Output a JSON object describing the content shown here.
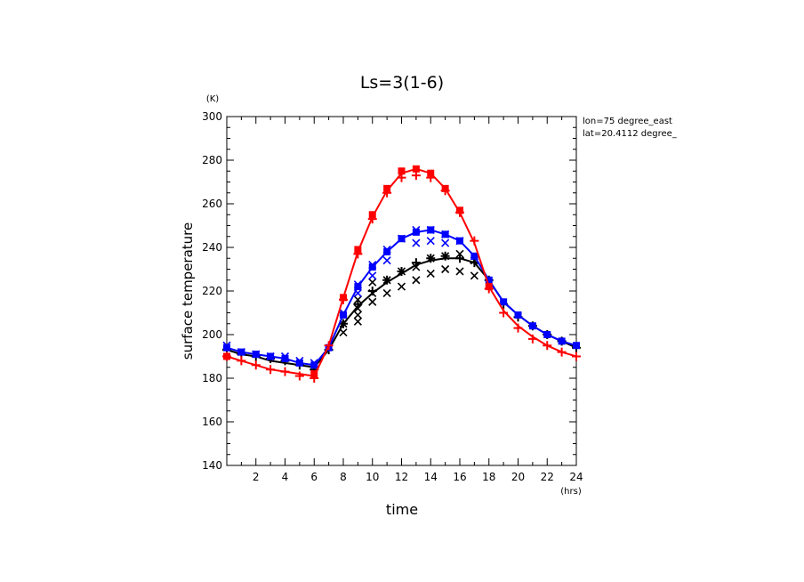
{
  "chart_data": {
    "type": "line",
    "title": "Ls=3(1-6)",
    "xlabel": "time",
    "ylabel": "surface temperature",
    "x_unit": "(hrs)",
    "y_unit": "(K)",
    "annotations": [
      "lon=75 degree_east",
      "lat=20.4112 degree_"
    ],
    "xlim": [
      0,
      24
    ],
    "ylim": [
      140,
      300
    ],
    "x_ticks": [
      2,
      4,
      6,
      8,
      10,
      12,
      14,
      16,
      18,
      20,
      22,
      24
    ],
    "x_tick_labels": [
      "2",
      "4",
      "6",
      "8",
      "10",
      "12",
      "14",
      "16",
      "18",
      "20",
      "22",
      "24"
    ],
    "y_ticks": [
      140,
      160,
      180,
      200,
      220,
      240,
      260,
      280,
      300
    ],
    "y_tick_labels": [
      "140",
      "160",
      "180",
      "200",
      "220",
      "240",
      "260",
      "280",
      "300"
    ],
    "grid": false,
    "series": [
      {
        "color": "#000000",
        "x": [
          0,
          1,
          2,
          3,
          4,
          5,
          6,
          7,
          8,
          9,
          10,
          11,
          12,
          13,
          14,
          15,
          16,
          17,
          18,
          19,
          20,
          21,
          22,
          23,
          24
        ],
        "y": [
          193,
          191,
          190,
          188,
          187,
          186,
          185,
          193,
          205,
          213,
          219,
          224,
          228,
          232,
          234,
          235,
          235,
          233,
          225,
          215,
          209,
          204,
          200,
          197,
          194
        ],
        "markers": [
          {
            "symbol": "x",
            "x": [
              8,
              8,
              9,
              9,
              9,
              9,
              10,
              10,
              10,
              11,
              11,
              12,
              12,
              13,
              13,
              14,
              14,
              15,
              15,
              16,
              16,
              17,
              17
            ],
            "y": [
              205,
              201,
              216,
              212,
              209,
              206,
              224,
              219,
              215,
              225,
              219,
              229,
              222,
              231,
              225,
              235,
              228,
              236,
              230,
              237,
              229,
              234,
              227
            ]
          },
          {
            "symbol": "plus",
            "x": [
              0,
              1,
              2,
              3,
              4,
              5,
              6,
              7,
              8,
              9,
              10,
              11,
              12,
              13,
              14,
              15,
              16,
              17,
              18,
              19,
              20,
              21,
              22,
              23,
              24
            ],
            "y": [
              193,
              191,
              190,
              189,
              188,
              186,
              184,
              193,
              205,
              214,
              220,
              225,
              229,
              233,
              235,
              236,
              235,
              233,
              225,
              214,
              208,
              204,
              200,
              197,
              194
            ]
          }
        ]
      },
      {
        "color": "#0000ff",
        "x": [
          0,
          1,
          2,
          3,
          4,
          5,
          6,
          7,
          8,
          9,
          10,
          11,
          12,
          13,
          14,
          15,
          16,
          17,
          18,
          19,
          20,
          21,
          22,
          23,
          24
        ],
        "y": [
          194,
          192,
          191,
          190,
          189,
          187,
          186,
          194,
          209,
          222,
          231,
          238,
          244,
          247,
          248,
          246,
          243,
          236,
          225,
          215,
          209,
          204,
          200,
          197,
          195
        ],
        "markers": [
          {
            "symbol": "x",
            "x": [
              0,
              1,
              2,
              3,
              4,
              5,
              6,
              8,
              9,
              9,
              10,
              10,
              11,
              11,
              12,
              13,
              13,
              14,
              14,
              15,
              15,
              16,
              17
            ],
            "y": [
              195,
              192,
              191,
              190,
              190,
              188,
              187,
              210,
              223,
              219,
              232,
              227,
              239,
              234,
              244,
              248,
              242,
              248,
              243,
              246,
              242,
              243,
              236
            ]
          },
          {
            "symbol": "square",
            "x": [
              0,
              1,
              2,
              3,
              4,
              5,
              6,
              7,
              8,
              9,
              10,
              11,
              12,
              13,
              14,
              15,
              16,
              17,
              18,
              19,
              20,
              21,
              22,
              23,
              24
            ],
            "y": [
              194,
              192,
              191,
              190,
              189,
              187,
              186,
              194,
              209,
              222,
              231,
              238,
              244,
              247,
              248,
              246,
              243,
              236,
              225,
              215,
              209,
              204,
              200,
              197,
              195
            ]
          }
        ]
      },
      {
        "color": "#ff0000",
        "x": [
          0,
          1,
          2,
          3,
          4,
          5,
          6,
          7,
          8,
          9,
          10,
          11,
          12,
          13,
          14,
          15,
          16,
          17,
          18,
          19,
          20,
          21,
          22,
          23,
          24
        ],
        "y": [
          190,
          188,
          186,
          184,
          183,
          182,
          181,
          195,
          217,
          238,
          254,
          266,
          274,
          276,
          274,
          267,
          256,
          242,
          222,
          211,
          204,
          199,
          195,
          192,
          190
        ],
        "markers": [
          {
            "symbol": "plus",
            "x": [
              0,
              1,
              2,
              3,
              4,
              5,
              6,
              7,
              8,
              9,
              10,
              11,
              12,
              13,
              14,
              15,
              16,
              17,
              18,
              19,
              20,
              21,
              22,
              23,
              24
            ],
            "y": [
              190,
              188,
              186,
              184,
              183,
              181,
              180,
              195,
              216,
              237,
              253,
              265,
              272,
              273,
              272,
              266,
              256,
              243,
              221,
              210,
              203,
              198,
              195,
              192,
              190
            ]
          },
          {
            "symbol": "square",
            "x": [
              0,
              6,
              8,
              9,
              10,
              11,
              12,
              13,
              14,
              15,
              16,
              18
            ],
            "y": [
              190,
              182,
              217,
              239,
              255,
              267,
              275,
              276,
              274,
              267,
              257,
              222
            ]
          }
        ]
      }
    ]
  }
}
